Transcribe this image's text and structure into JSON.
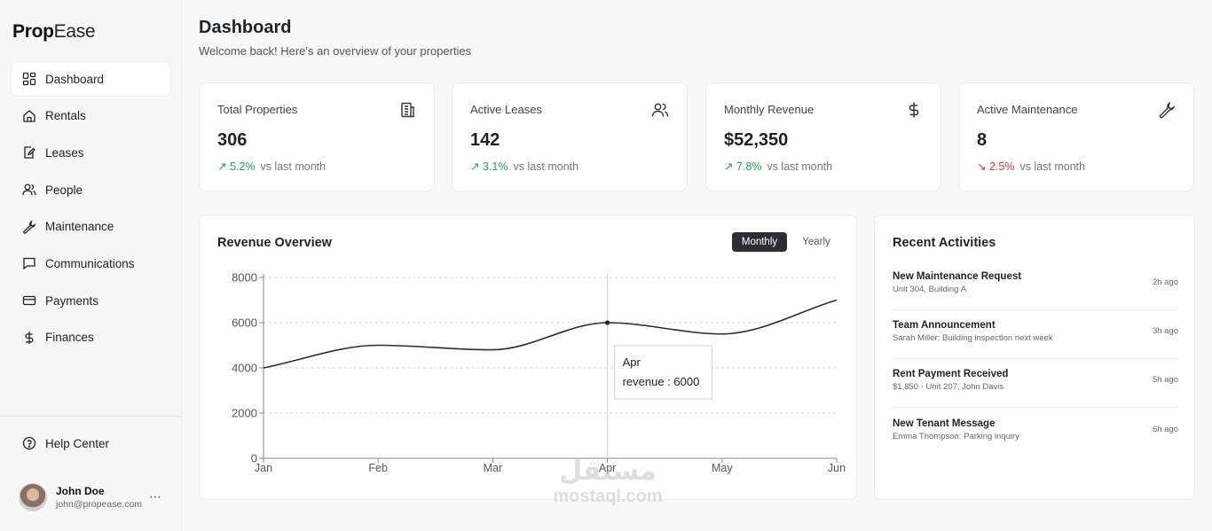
{
  "app": {
    "logo_bold": "Prop",
    "logo_light": "Ease"
  },
  "sidebar": {
    "items": [
      {
        "label": "Dashboard",
        "icon": "grid-icon"
      },
      {
        "label": "Rentals",
        "icon": "home-icon"
      },
      {
        "label": "Leases",
        "icon": "edit-document-icon"
      },
      {
        "label": "People",
        "icon": "users-icon"
      },
      {
        "label": "Maintenance",
        "icon": "wrench-icon"
      },
      {
        "label": "Communications",
        "icon": "message-icon"
      },
      {
        "label": "Payments",
        "icon": "credit-card-icon"
      },
      {
        "label": "Finances",
        "icon": "dollar-icon"
      }
    ],
    "help": "Help Center",
    "user": {
      "name": "John Doe",
      "email": "john@propease.com",
      "more": "⋯"
    }
  },
  "header": {
    "title": "Dashboard",
    "subtitle": "Welcome back! Here's an overview of your properties"
  },
  "stats": [
    {
      "label": "Total Properties",
      "value": "306",
      "change": "↗ 5.2%",
      "direction": "up",
      "vs": "vs last month",
      "icon": "building-icon"
    },
    {
      "label": "Active Leases",
      "value": "142",
      "change": "↗ 3.1%",
      "direction": "up",
      "vs": "vs last month",
      "icon": "users-icon"
    },
    {
      "label": "Monthly Revenue",
      "value": "$52,350",
      "change": "↗ 7.8%",
      "direction": "up",
      "vs": "vs last month",
      "icon": "dollar-icon"
    },
    {
      "label": "Active Maintenance",
      "value": "8",
      "change": "↘ 2.5%",
      "direction": "down",
      "vs": "vs last month",
      "icon": "wrench-icon"
    }
  ],
  "revenue": {
    "title": "Revenue Overview",
    "toggle_monthly": "Monthly",
    "toggle_yearly": "Yearly",
    "tooltip": {
      "label": "Apr",
      "text": "revenue : 6000"
    }
  },
  "chart_data": {
    "type": "line",
    "title": "Revenue Overview",
    "categories": [
      "Jan",
      "Feb",
      "Mar",
      "Apr",
      "May",
      "Jun"
    ],
    "series": [
      {
        "name": "revenue",
        "values": [
          4000,
          5000,
          4800,
          6000,
          5500,
          7000
        ]
      }
    ],
    "yticks": [
      0,
      2000,
      4000,
      6000,
      8000
    ],
    "ylim": [
      0,
      8000
    ],
    "grid": true,
    "highlight_index": 3
  },
  "activities": {
    "title": "Recent Activities",
    "items": [
      {
        "title": "New Maintenance Request",
        "desc": "Unit 304, Building A",
        "time": "2h ago"
      },
      {
        "title": "Team Announcement",
        "desc": "Sarah Miller: Building inspection next week",
        "time": "3h ago"
      },
      {
        "title": "Rent Payment Received",
        "desc": "$1,850 · Unit 207, John Davis",
        "time": "5h ago"
      },
      {
        "title": "New Tenant Message",
        "desc": "Emma Thompson: Parking inquiry",
        "time": "6h ago"
      }
    ]
  },
  "watermark": {
    "arabic": "مستقل",
    "latin": "mostaql.com"
  },
  "colors": {
    "up": "#22a35a",
    "down": "#d93a3a",
    "line": "#2b2b2b",
    "toggle_active": "#2b2f33"
  }
}
